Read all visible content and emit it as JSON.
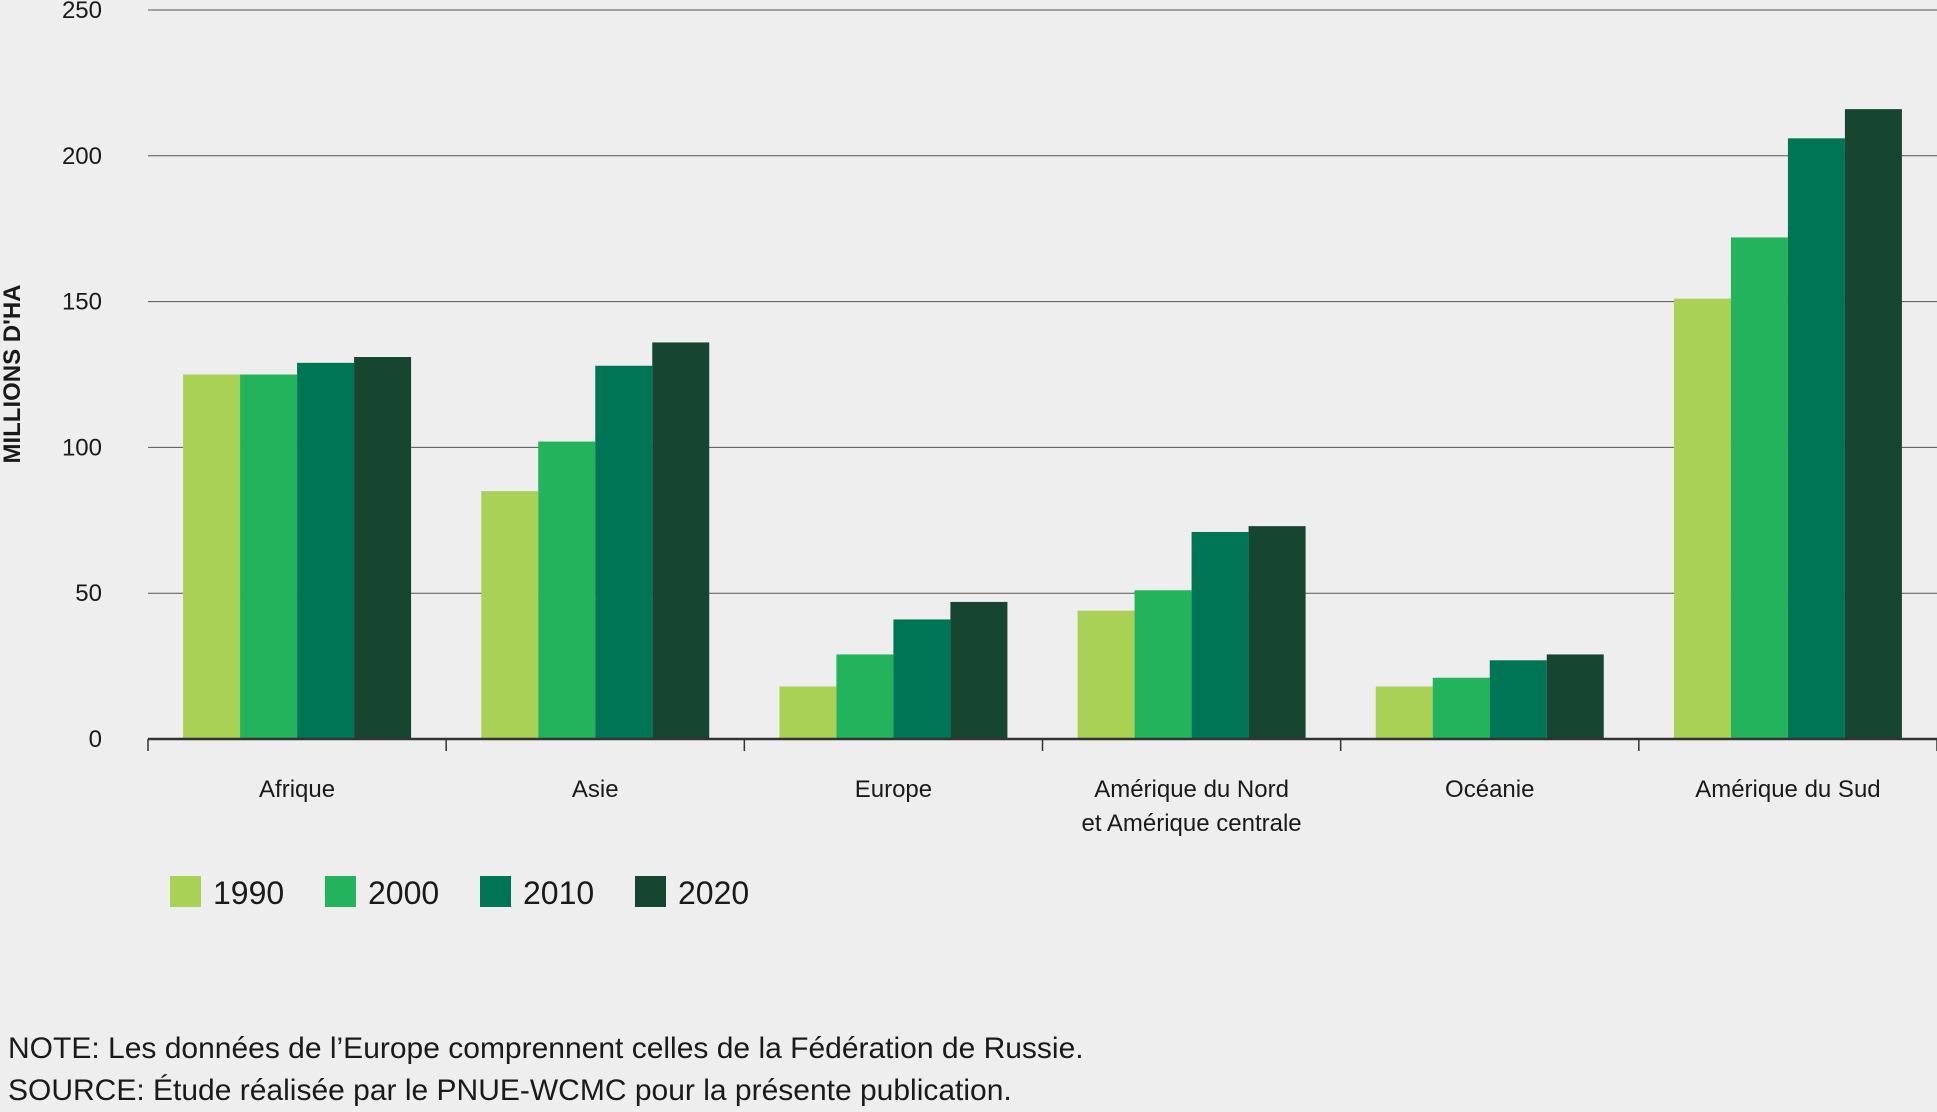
{
  "chart_data": {
    "type": "bar",
    "title": "",
    "xlabel": "",
    "ylabel": "MILLIONS D'HA",
    "ylim": [
      0,
      250
    ],
    "yticks": [
      0,
      50,
      100,
      150,
      200,
      250
    ],
    "grid": true,
    "legend_position": "bottom-left",
    "categories": [
      [
        "Afrique"
      ],
      [
        "Asie"
      ],
      [
        "Europe"
      ],
      [
        "Amérique du Nord",
        "et Amérique centrale"
      ],
      [
        "Océanie"
      ],
      [
        "Amérique du Sud"
      ]
    ],
    "series": [
      {
        "name": "1990",
        "color": "#a8d155",
        "values": [
          125,
          85,
          18,
          44,
          18,
          151
        ]
      },
      {
        "name": "2000",
        "color": "#22b35c",
        "values": [
          125,
          102,
          29,
          51,
          21,
          172
        ]
      },
      {
        "name": "2010",
        "color": "#007556",
        "values": [
          129,
          128,
          41,
          71,
          27,
          206
        ]
      },
      {
        "name": "2020",
        "color": "#164530",
        "values": [
          131,
          136,
          47,
          73,
          29,
          216
        ]
      }
    ]
  },
  "notes": {
    "note": "NOTE: Les données de l’Europe comprennent celles de la Fédération de Russie.",
    "source": "SOURCE: Étude réalisée par le PNUE-WCMC pour la présente publication."
  }
}
